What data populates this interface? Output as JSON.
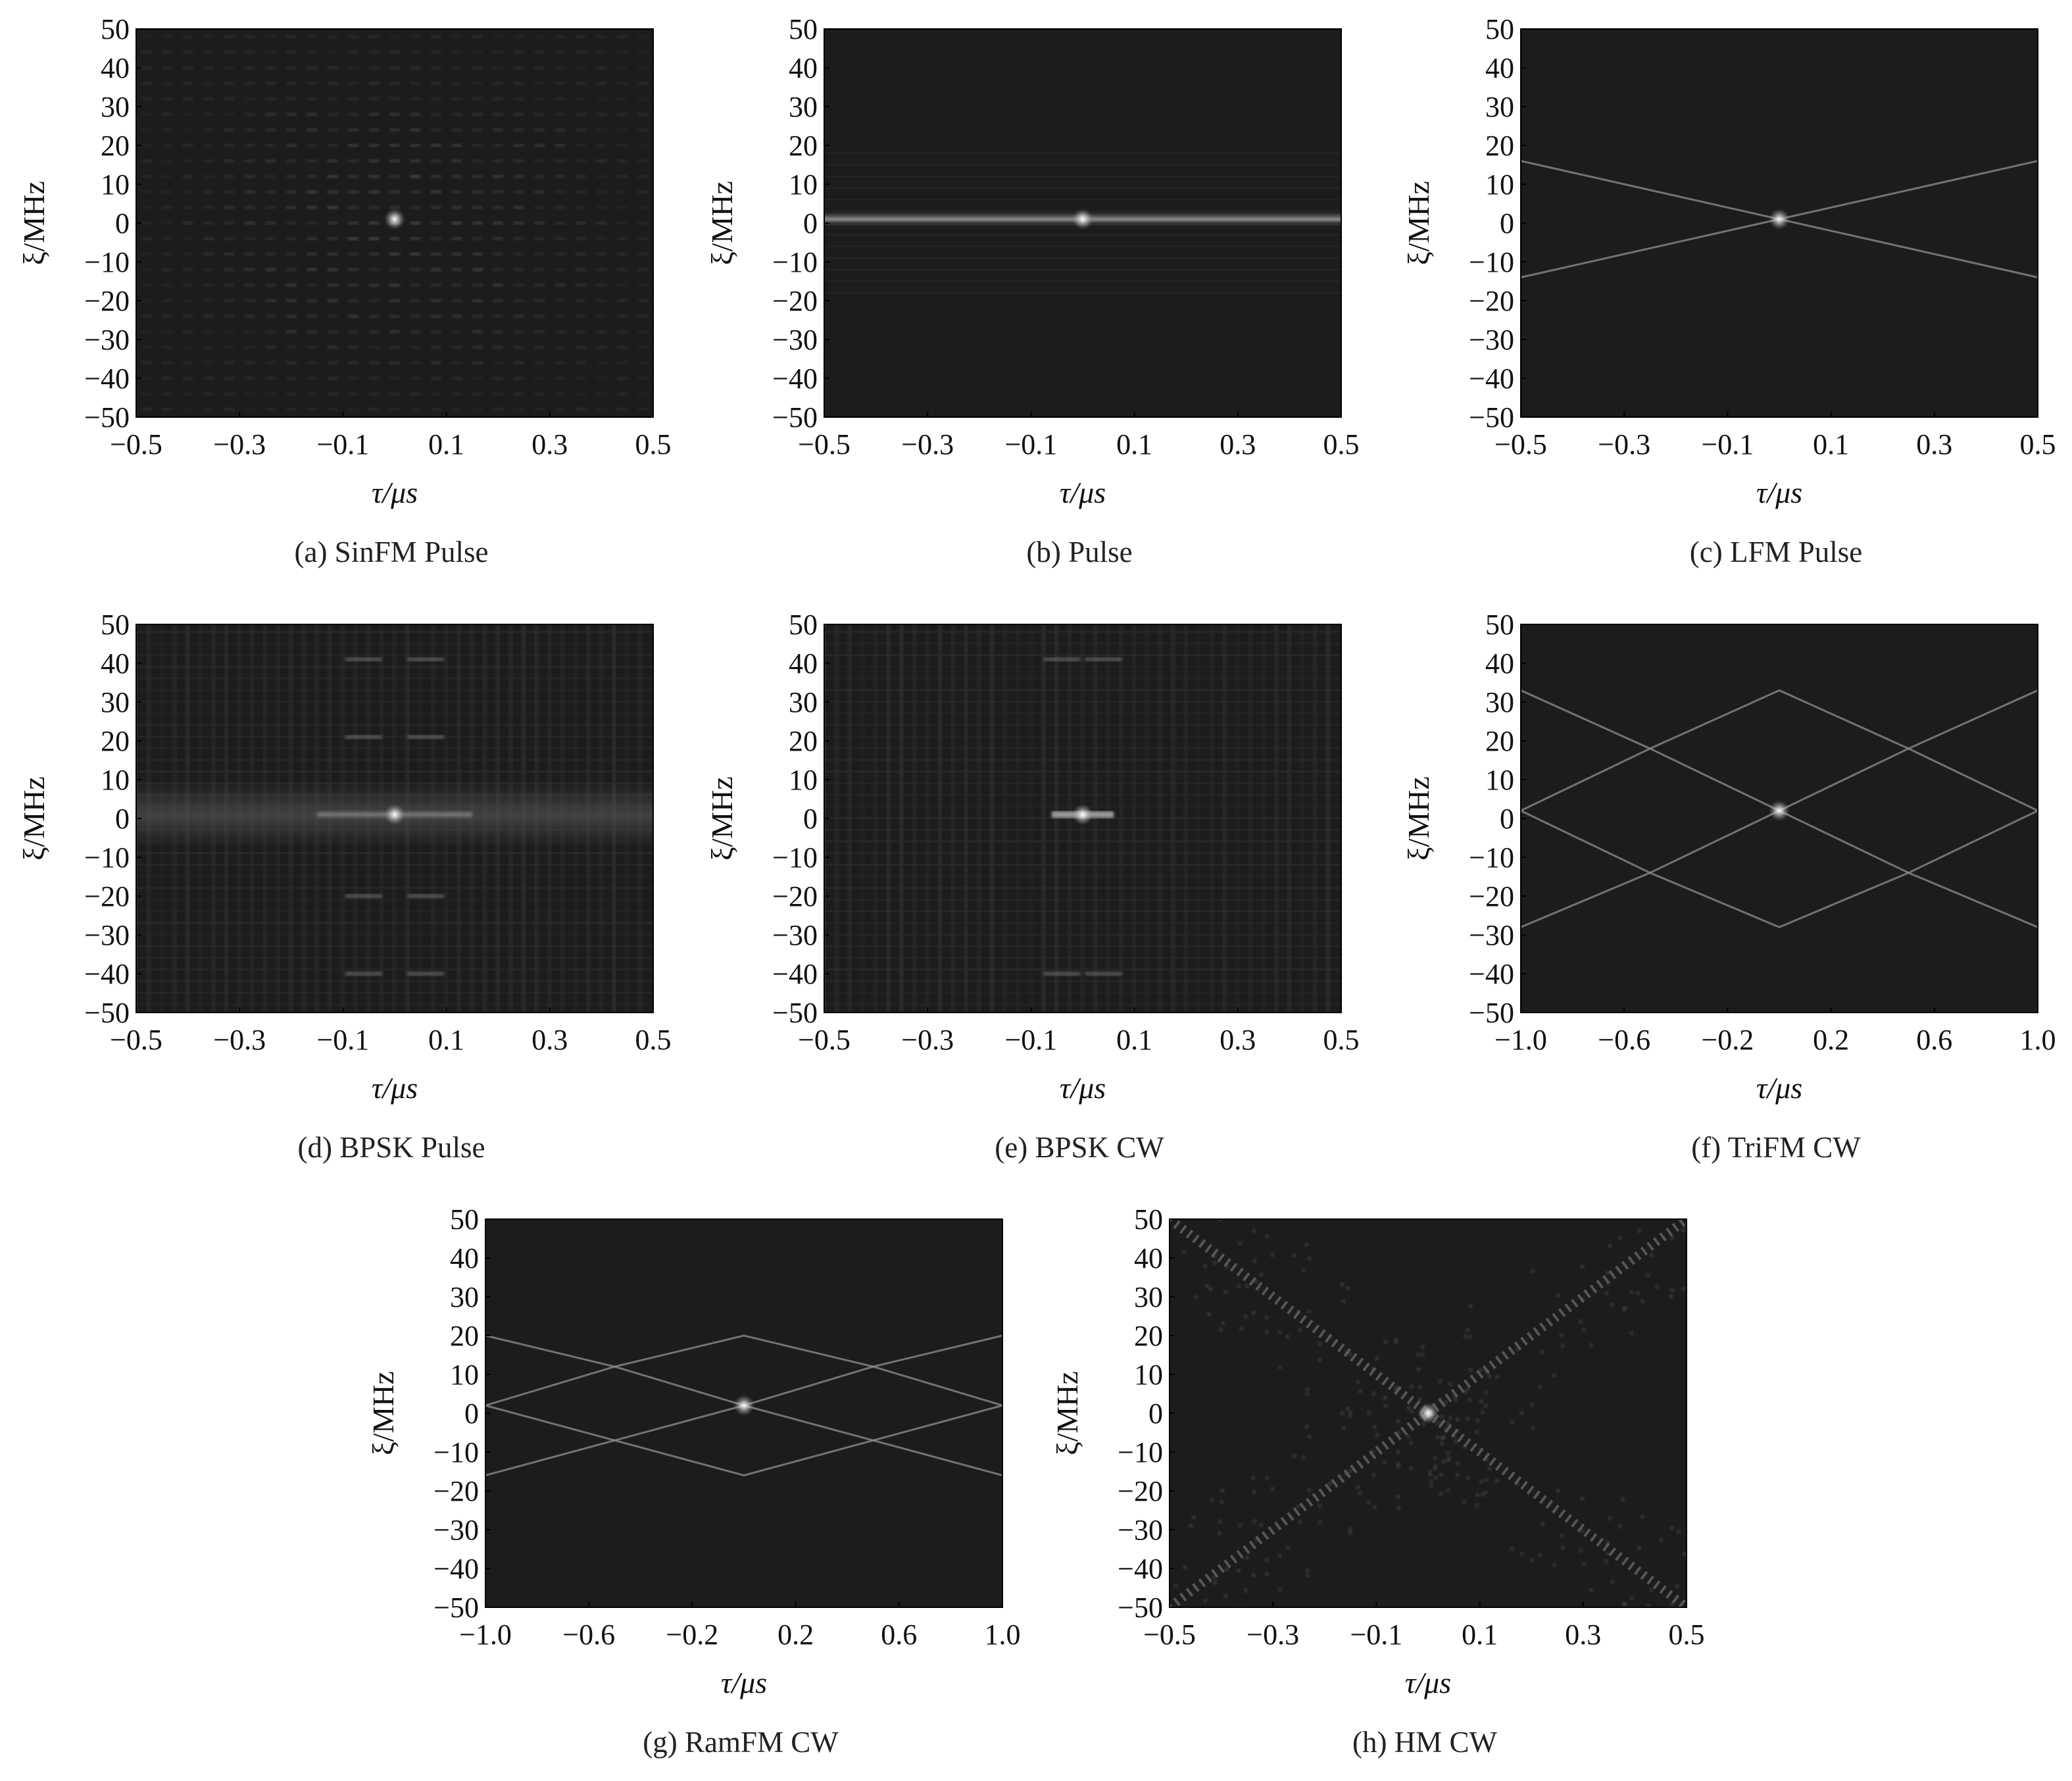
{
  "chart_data": [
    {
      "type": "heatmap",
      "caption": "(a) SinFM Pulse",
      "xlabel": "τ/μs",
      "ylabel": "ξ/MHz",
      "xlim": [
        -0.5,
        0.5
      ],
      "ylim": [
        -50,
        50
      ],
      "xticks": [
        "−0.5",
        "−0.3",
        "−0.1",
        "0.1",
        "0.3",
        "0.5"
      ],
      "yticks": [
        "−50",
        "−40",
        "−30",
        "−20",
        "−10",
        "0",
        "10",
        "20",
        "30",
        "40",
        "50"
      ],
      "pattern": "peak-with-grid-sidelobes",
      "peak": [
        0,
        1
      ]
    },
    {
      "type": "heatmap",
      "caption": "(b) Pulse",
      "xlabel": "τ/μs",
      "ylabel": "ξ/MHz",
      "xlim": [
        -0.5,
        0.5
      ],
      "ylim": [
        -50,
        50
      ],
      "xticks": [
        "−0.5",
        "−0.3",
        "−0.1",
        "0.1",
        "0.3",
        "0.5"
      ],
      "yticks": [
        "−50",
        "−40",
        "−30",
        "−20",
        "−10",
        "0",
        "10",
        "20",
        "30",
        "40",
        "50"
      ],
      "pattern": "horizontal-ridge",
      "peak": [
        0,
        1
      ]
    },
    {
      "type": "heatmap",
      "caption": "(c) LFM Pulse",
      "xlabel": "τ/μs",
      "ylabel": "ξ/MHz",
      "xlim": [
        -0.5,
        0.5
      ],
      "ylim": [
        -50,
        50
      ],
      "xticks": [
        "−0.5",
        "−0.3",
        "−0.1",
        "0.1",
        "0.3",
        "0.5"
      ],
      "yticks": [
        "−50",
        "−40",
        "−30",
        "−20",
        "−10",
        "0",
        "10",
        "20",
        "30",
        "40",
        "50"
      ],
      "pattern": "x-cross",
      "ridges": [
        [
          [
            -0.5,
            16
          ],
          [
            0.5,
            -14
          ]
        ],
        [
          [
            -0.5,
            -14
          ],
          [
            0.5,
            16
          ]
        ]
      ],
      "peak": [
        0,
        1
      ]
    },
    {
      "type": "heatmap",
      "caption": "(d) BPSK Pulse",
      "xlabel": "τ/μs",
      "ylabel": "ξ/MHz",
      "xlim": [
        -0.5,
        0.5
      ],
      "ylim": [
        -50,
        50
      ],
      "xticks": [
        "−0.5",
        "−0.3",
        "−0.1",
        "0.1",
        "0.3",
        "0.5"
      ],
      "yticks": [
        "−50",
        "−40",
        "−30",
        "−20",
        "−10",
        "0",
        "10",
        "20",
        "30",
        "40",
        "50"
      ],
      "pattern": "thumbtack-horizontal-band",
      "sidelobes": [
        [
          -0.06,
          21
        ],
        [
          0.06,
          21
        ],
        [
          -0.06,
          -20
        ],
        [
          0.06,
          -20
        ],
        [
          -0.06,
          41
        ],
        [
          0.06,
          41
        ],
        [
          -0.06,
          -40
        ],
        [
          0.06,
          -40
        ]
      ],
      "peak": [
        0,
        1
      ]
    },
    {
      "type": "heatmap",
      "caption": "(e) BPSK CW",
      "xlabel": "τ/μs",
      "ylabel": "ξ/MHz",
      "xlim": [
        -0.5,
        0.5
      ],
      "ylim": [
        -50,
        50
      ],
      "xticks": [
        "−0.5",
        "−0.3",
        "−0.1",
        "0.1",
        "0.3",
        "0.5"
      ],
      "yticks": [
        "−50",
        "−40",
        "−30",
        "−20",
        "−10",
        "0",
        "10",
        "20",
        "30",
        "40",
        "50"
      ],
      "pattern": "thumbtack-striped",
      "sidelobes": [
        [
          -0.04,
          41
        ],
        [
          0.04,
          41
        ],
        [
          -0.04,
          -40
        ],
        [
          0.04,
          -40
        ]
      ],
      "peak": [
        0,
        1
      ]
    },
    {
      "type": "heatmap",
      "caption": "(f) TriFM CW",
      "xlabel": "τ/μs",
      "ylabel": "ξ/MHz",
      "xlim": [
        -1.0,
        1.0
      ],
      "ylim": [
        -50,
        50
      ],
      "xticks": [
        "−1.0",
        "−0.6",
        "−0.2",
        "0.2",
        "0.6",
        "1.0"
      ],
      "yticks": [
        "−50",
        "−40",
        "−30",
        "−20",
        "−10",
        "0",
        "10",
        "20",
        "30",
        "40",
        "50"
      ],
      "pattern": "diamond-lattice",
      "ridges": [
        [
          [
            -1.0,
            2
          ],
          [
            -0.5,
            18
          ],
          [
            0,
            2
          ],
          [
            0.5,
            18
          ],
          [
            1.0,
            2
          ]
        ],
        [
          [
            -1.0,
            2
          ],
          [
            -0.5,
            -14
          ],
          [
            0,
            2
          ],
          [
            0.5,
            -14
          ],
          [
            1.0,
            2
          ]
        ],
        [
          [
            -1.0,
            33
          ],
          [
            -0.5,
            18
          ],
          [
            0,
            33
          ],
          [
            0.5,
            18
          ],
          [
            1.0,
            33
          ]
        ],
        [
          [
            -1.0,
            -28
          ],
          [
            -0.5,
            -14
          ],
          [
            0,
            -28
          ],
          [
            0.5,
            -14
          ],
          [
            1.0,
            -28
          ]
        ]
      ],
      "peak": [
        0,
        2
      ]
    },
    {
      "type": "heatmap",
      "caption": "(g) RamFM CW",
      "xlabel": "τ/μs",
      "ylabel": "ξ/MHz",
      "xlim": [
        -1.0,
        1.0
      ],
      "ylim": [
        -50,
        50
      ],
      "xticks": [
        "−1.0",
        "−0.6",
        "−0.2",
        "0.2",
        "0.6",
        "1.0"
      ],
      "yticks": [
        "−50",
        "−40",
        "−30",
        "−20",
        "−10",
        "0",
        "10",
        "20",
        "30",
        "40",
        "50"
      ],
      "pattern": "diamond-lattice",
      "ridges": [
        [
          [
            -1.0,
            2
          ],
          [
            -0.5,
            12
          ],
          [
            0,
            2
          ],
          [
            0.5,
            12
          ],
          [
            1.0,
            2
          ]
        ],
        [
          [
            -1.0,
            2
          ],
          [
            -0.5,
            -7
          ],
          [
            0,
            2
          ],
          [
            0.5,
            -7
          ],
          [
            1.0,
            2
          ]
        ],
        [
          [
            -1.0,
            20
          ],
          [
            -0.5,
            12
          ],
          [
            0,
            20
          ],
          [
            0.5,
            12
          ],
          [
            1.0,
            20
          ]
        ],
        [
          [
            -1.0,
            -16
          ],
          [
            -0.5,
            -7
          ],
          [
            0,
            -16
          ],
          [
            0.5,
            -7
          ],
          [
            1.0,
            -16
          ]
        ]
      ],
      "peak": [
        0,
        2
      ]
    },
    {
      "type": "heatmap",
      "caption": "(h) HM CW",
      "xlabel": "τ/μs",
      "ylabel": "ξ/MHz",
      "xlim": [
        -0.5,
        0.5
      ],
      "ylim": [
        -50,
        50
      ],
      "xticks": [
        "−0.5",
        "−0.3",
        "−0.1",
        "0.1",
        "0.3",
        "0.5"
      ],
      "yticks": [
        "−50",
        "−40",
        "−30",
        "−20",
        "−10",
        "0",
        "10",
        "20",
        "30",
        "40",
        "50"
      ],
      "pattern": "x-cross-dotted",
      "ridges": [
        [
          [
            -0.5,
            50
          ],
          [
            0.5,
            -50
          ]
        ],
        [
          [
            -0.5,
            -50
          ],
          [
            0.5,
            50
          ]
        ]
      ],
      "peak": [
        0,
        0
      ]
    }
  ],
  "colors": {
    "background": "#1c1c1c",
    "frame": "#000000",
    "ridge": "#8a8a8a",
    "peak": "#ffffff"
  }
}
